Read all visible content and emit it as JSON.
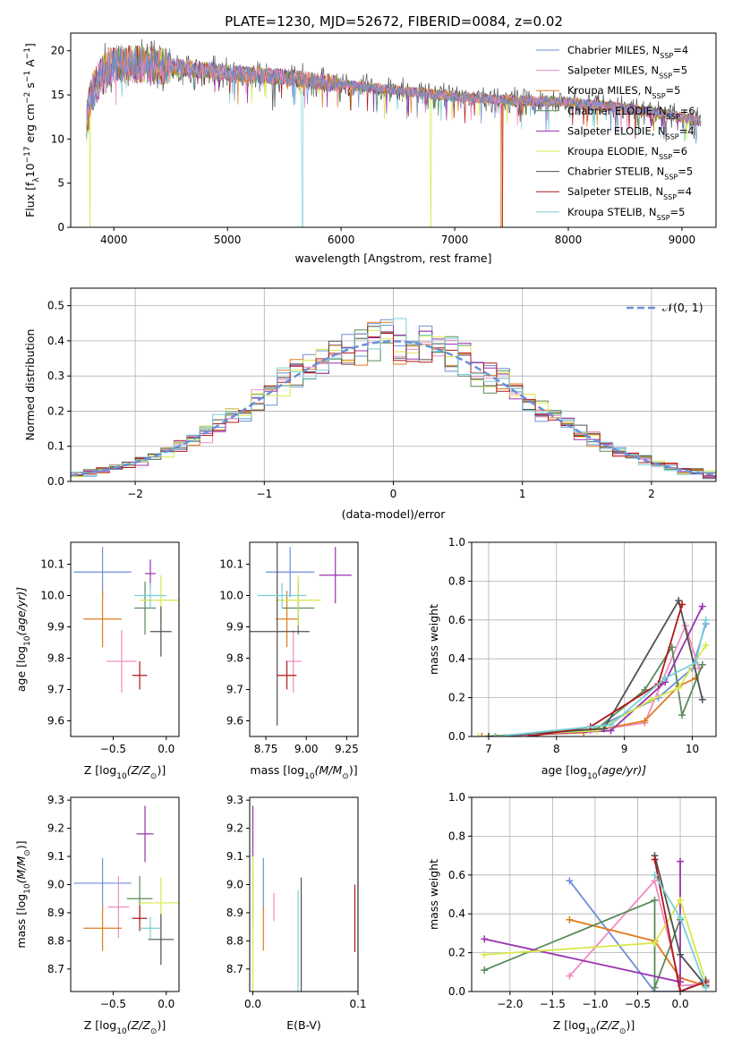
{
  "title": "PLATE=1230, MJD=52672, FIBERID=0084, z=0.02",
  "legend": [
    {
      "label": "Chabrier MILES, N",
      "n": "4",
      "color": "#6b8fd6"
    },
    {
      "label": "Salpeter MILES, N",
      "n": "5",
      "color": "#f08cc0"
    },
    {
      "label": "Kroupa MILES, N",
      "n": "5",
      "color": "#e07b20"
    },
    {
      "label": "Chabrier ELODIE, N",
      "n": "6",
      "color": "#5a8a5a"
    },
    {
      "label": "Salpeter ELODIE, N",
      "n": "4",
      "color": "#9b30b0"
    },
    {
      "label": "Kroupa ELODIE, N",
      "n": "6",
      "color": "#d8e84a"
    },
    {
      "label": "Chabrier STELIB, N",
      "n": "5",
      "color": "#505050"
    },
    {
      "label": "Salpeter STELIB, N",
      "n": "4",
      "color": "#b01818"
    },
    {
      "label": "Kroupa STELIB, N",
      "n": "5",
      "color": "#78d0d8"
    }
  ],
  "legend_sub": "SSP",
  "chart_data": [
    {
      "type": "line",
      "id": "spectrum",
      "xlabel": "wavelength [Angstrom, rest frame]",
      "ylabel": "Flux [f",
      "ylabel_sub": "λ",
      "ylabel_rest": "10",
      "ylabel_exp1": "−17",
      "ylabel_mid": " erg cm",
      "ylabel_exp2": "−2",
      "ylabel_mid2": " s",
      "ylabel_exp3": "−1",
      "ylabel_end": " A",
      "ylabel_exp4": "−1",
      "ylabel_close": "]",
      "xlim": [
        3620,
        9300
      ],
      "ylim": [
        0,
        22
      ],
      "xticks": [
        "4000",
        "5000",
        "6000",
        "7000",
        "8000",
        "9000"
      ],
      "yticks": [
        "0",
        "5",
        "10",
        "15",
        "20"
      ],
      "continuum": [
        [
          3760,
          12
        ],
        [
          3800,
          15
        ],
        [
          3900,
          17.5
        ],
        [
          4000,
          18.5
        ],
        [
          4200,
          18.5
        ],
        [
          4500,
          18.2
        ],
        [
          5000,
          17.5
        ],
        [
          5500,
          17
        ],
        [
          6000,
          16.2
        ],
        [
          6500,
          15.5
        ],
        [
          7000,
          14.8
        ],
        [
          7500,
          14.4
        ],
        [
          8000,
          14.2
        ],
        [
          8500,
          13.5
        ],
        [
          9000,
          12.5
        ],
        [
          9170,
          12
        ]
      ]
    },
    {
      "type": "line",
      "id": "residuals",
      "xlabel": "(data-model)/error",
      "ylabel": "Normed distribution",
      "legend": "𝒩(0, 1)",
      "xlim": [
        -2.5,
        2.5
      ],
      "ylim": [
        0,
        0.55
      ],
      "xticks": [
        "−2",
        "−1",
        "0",
        "1",
        "2"
      ],
      "yticks": [
        "0.0",
        "0.1",
        "0.2",
        "0.3",
        "0.4",
        "0.5"
      ],
      "grid": true
    },
    {
      "type": "scatter",
      "id": "age-vs-Z",
      "xlabel": "Z [log",
      "xlabel_sub": "10",
      "xlabel_rest": "(Z/Z",
      "xlabel_sun": "⊙",
      "xlabel_end": ")]",
      "ylabel": "age  [log",
      "ylabel_sub": "10",
      "ylabel_rest": "(age/yr)]",
      "xlim": [
        -0.9,
        0.12
      ],
      "ylim": [
        9.55,
        10.17
      ],
      "xticks": [
        "−0.5",
        "0.0"
      ],
      "yticks": [
        "9.6",
        "9.7",
        "9.8",
        "9.9",
        "10.0",
        "10.1"
      ],
      "points": [
        {
          "x": -0.6,
          "y": 10.075,
          "dx": 0.27,
          "dy": 0.08,
          "c": "#6b8fd6"
        },
        {
          "x": -0.42,
          "y": 9.79,
          "dx": 0.14,
          "dy": 0.1,
          "c": "#f08cc0"
        },
        {
          "x": -0.6,
          "y": 9.925,
          "dx": 0.18,
          "dy": 0.09,
          "c": "#e07b20"
        },
        {
          "x": -0.2,
          "y": 9.96,
          "dx": 0.1,
          "dy": 0.085,
          "c": "#5a8a5a"
        },
        {
          "x": -0.15,
          "y": 10.07,
          "dx": 0.05,
          "dy": 0.045,
          "c": "#9b30b0"
        },
        {
          "x": -0.05,
          "y": 9.985,
          "dx": 0.2,
          "dy": 0.08,
          "c": "#d8e84a"
        },
        {
          "x": -0.05,
          "y": 9.885,
          "dx": 0.1,
          "dy": 0.08,
          "c": "#505050"
        },
        {
          "x": -0.25,
          "y": 9.745,
          "dx": 0.07,
          "dy": 0.045,
          "c": "#b01818"
        },
        {
          "x": -0.15,
          "y": 10.0,
          "dx": 0.15,
          "dy": 0.04,
          "c": "#78d0d8"
        }
      ]
    },
    {
      "type": "scatter",
      "id": "age-vs-mass",
      "xlabel": "mass [log",
      "xlabel_sub": "10",
      "xlabel_rest": "(M/M",
      "xlabel_sun": "⊙",
      "xlabel_end": ")]",
      "xlim": [
        8.65,
        9.32
      ],
      "ylim": [
        9.55,
        10.17
      ],
      "xticks": [
        "8.75",
        "9.00",
        "9.25"
      ],
      "yticks": [
        "9.6",
        "9.7",
        "9.8",
        "9.9",
        "10.0",
        "10.1"
      ],
      "points": [
        {
          "x": 8.9,
          "y": 10.075,
          "dx": 0.15,
          "dy": 0.08,
          "c": "#6b8fd6"
        },
        {
          "x": 8.92,
          "y": 9.79,
          "dx": 0.05,
          "dy": 0.1,
          "c": "#f08cc0"
        },
        {
          "x": 8.88,
          "y": 9.925,
          "dx": 0.07,
          "dy": 0.09,
          "c": "#e07b20"
        },
        {
          "x": 8.95,
          "y": 9.96,
          "dx": 0.1,
          "dy": 0.085,
          "c": "#5a8a5a"
        },
        {
          "x": 9.18,
          "y": 10.065,
          "dx": 0.1,
          "dy": 0.09,
          "c": "#9b30b0"
        },
        {
          "x": 8.95,
          "y": 9.985,
          "dx": 0.14,
          "dy": 0.08,
          "c": "#d8e84a"
        },
        {
          "x": 8.82,
          "y": 9.885,
          "dx": 0.2,
          "dy": 0.3,
          "c": "#505050"
        },
        {
          "x": 8.88,
          "y": 9.745,
          "dx": 0.06,
          "dy": 0.045,
          "c": "#b01818"
        },
        {
          "x": 8.85,
          "y": 10.0,
          "dx": 0.15,
          "dy": 0.04,
          "c": "#78d0d8"
        }
      ]
    },
    {
      "type": "line",
      "id": "weight-vs-age",
      "xlabel": "age  [log",
      "xlabel_sub": "10",
      "xlabel_rest": "(age/yr)]",
      "ylabel": "mass weight",
      "xlim": [
        6.75,
        10.35
      ],
      "ylim": [
        0,
        1.0
      ],
      "xticks": [
        "7",
        "8",
        "9",
        "10"
      ],
      "yticks": [
        "0.0",
        "0.2",
        "0.4",
        "0.6",
        "0.8",
        "1.0"
      ],
      "grid": true,
      "series": [
        {
          "c": "#6b8fd6",
          "pts": [
            [
              6.9,
              0.0
            ],
            [
              8.5,
              0.03
            ],
            [
              9.5,
              0.2
            ],
            [
              10.0,
              0.35
            ],
            [
              10.2,
              0.58
            ]
          ]
        },
        {
          "c": "#f08cc0",
          "pts": [
            [
              7.0,
              0.0
            ],
            [
              8.5,
              0.03
            ],
            [
              9.3,
              0.07
            ],
            [
              9.9,
              0.57
            ],
            [
              10.1,
              0.35
            ]
          ]
        },
        {
          "c": "#e07b20",
          "pts": [
            [
              6.9,
              0.0
            ],
            [
              8.4,
              0.02
            ],
            [
              9.3,
              0.08
            ],
            [
              9.8,
              0.26
            ],
            [
              10.05,
              0.3
            ]
          ]
        },
        {
          "c": "#5a8a5a",
          "pts": [
            [
              7.1,
              0.0
            ],
            [
              8.6,
              0.04
            ],
            [
              9.3,
              0.24
            ],
            [
              9.7,
              0.46
            ],
            [
              9.85,
              0.11
            ],
            [
              10.15,
              0.37
            ]
          ]
        },
        {
          "c": "#9b30b0",
          "pts": [
            [
              7.0,
              0.0
            ],
            [
              8.8,
              0.03
            ],
            [
              9.6,
              0.28
            ],
            [
              10.15,
              0.67
            ]
          ]
        },
        {
          "c": "#d8e84a",
          "pts": [
            [
              6.85,
              0.0
            ],
            [
              8.6,
              0.03
            ],
            [
              9.4,
              0.19
            ],
            [
              9.8,
              0.25
            ],
            [
              10.2,
              0.47
            ]
          ]
        },
        {
          "c": "#505050",
          "pts": [
            [
              7.0,
              0.0
            ],
            [
              8.7,
              0.04
            ],
            [
              9.8,
              0.7
            ],
            [
              10.15,
              0.19
            ]
          ]
        },
        {
          "c": "#b01818",
          "pts": [
            [
              7.6,
              0.0
            ],
            [
              8.5,
              0.05
            ],
            [
              9.5,
              0.27
            ],
            [
              9.85,
              0.68
            ]
          ]
        },
        {
          "c": "#78d0d8",
          "pts": [
            [
              7.1,
              0.0
            ],
            [
              8.8,
              0.06
            ],
            [
              9.6,
              0.3
            ],
            [
              10.05,
              0.38
            ],
            [
              10.2,
              0.6
            ]
          ]
        }
      ]
    },
    {
      "type": "scatter",
      "id": "mass-vs-Z",
      "xlabel": "Z [log",
      "xlabel_sub": "10",
      "xlabel_rest": "(Z/Z",
      "xlabel_sun": "⊙",
      "xlabel_end": ")]",
      "ylabel": "mass [log",
      "ylabel_sub": "10",
      "ylabel_rest": "(M/M",
      "ylabel_sun": "⊙",
      "ylabel_end": ")]",
      "xlim": [
        -0.9,
        0.12
      ],
      "ylim": [
        8.62,
        9.31
      ],
      "xticks": [
        "−0.5",
        "0.0"
      ],
      "yticks": [
        "8.7",
        "8.8",
        "8.9",
        "9.0",
        "9.1",
        "9.2",
        "9.3"
      ],
      "points": [
        {
          "x": -0.6,
          "y": 9.005,
          "dx": 0.27,
          "dy": 0.09,
          "c": "#6b8fd6"
        },
        {
          "x": -0.45,
          "y": 8.92,
          "dx": 0.1,
          "dy": 0.11,
          "c": "#f08cc0"
        },
        {
          "x": -0.6,
          "y": 8.845,
          "dx": 0.18,
          "dy": 0.08,
          "c": "#e07b20"
        },
        {
          "x": -0.25,
          "y": 8.95,
          "dx": 0.12,
          "dy": 0.08,
          "c": "#5a8a5a"
        },
        {
          "x": -0.2,
          "y": 9.18,
          "dx": 0.08,
          "dy": 0.1,
          "c": "#9b30b0"
        },
        {
          "x": -0.05,
          "y": 8.935,
          "dx": 0.2,
          "dy": 0.09,
          "c": "#d8e84a"
        },
        {
          "x": -0.05,
          "y": 8.805,
          "dx": 0.12,
          "dy": 0.09,
          "c": "#505050"
        },
        {
          "x": -0.25,
          "y": 8.88,
          "dx": 0.07,
          "dy": 0.045,
          "c": "#b01818"
        },
        {
          "x": -0.15,
          "y": 8.845,
          "dx": 0.1,
          "dy": 0.04,
          "c": "#78d0d8"
        }
      ]
    },
    {
      "type": "scatter",
      "id": "mass-vs-ebv",
      "xlabel": "E(B-V)",
      "xlim": [
        -0.003,
        0.1
      ],
      "ylim": [
        8.62,
        9.31
      ],
      "xticks": [
        "0.0",
        "0.1"
      ],
      "yticks": [
        "8.7",
        "8.8",
        "8.9",
        "9.0",
        "9.1",
        "9.2",
        "9.3"
      ],
      "points": [
        {
          "x": 0.01,
          "y": 9.005,
          "dx": 0,
          "dy": 0.09,
          "c": "#6b8fd6"
        },
        {
          "x": 0.02,
          "y": 8.92,
          "dx": 0,
          "dy": 0.05,
          "c": "#f08cc0"
        },
        {
          "x": 0.01,
          "y": 8.845,
          "dx": 0,
          "dy": 0.08,
          "c": "#e07b20"
        },
        {
          "x": 0.0,
          "y": 8.95,
          "dx": 0,
          "dy": 0.1,
          "c": "#5a8a5a"
        },
        {
          "x": 0.0,
          "y": 9.18,
          "dx": 0,
          "dy": 0.1,
          "c": "#9b30b0"
        },
        {
          "x": 0.0,
          "y": 8.8,
          "dx": 0,
          "dy": 0.3,
          "c": "#d8e84a"
        },
        {
          "x": 0.046,
          "y": 8.805,
          "dx": 0,
          "dy": 0.22,
          "c": "#505050"
        },
        {
          "x": 0.097,
          "y": 8.88,
          "dx": 0,
          "dy": 0.12,
          "c": "#b01818"
        },
        {
          "x": 0.043,
          "y": 8.78,
          "dx": 0,
          "dy": 0.2,
          "c": "#78d0d8"
        }
      ]
    },
    {
      "type": "line",
      "id": "weight-vs-Z",
      "xlabel": "Z [log",
      "xlabel_sub": "10",
      "xlabel_rest": "(Z/Z",
      "xlabel_sun": "⊙",
      "xlabel_end": ")]",
      "ylabel": "mass weight",
      "xlim": [
        -2.45,
        0.42
      ],
      "ylim": [
        0,
        1.0
      ],
      "xticks": [
        "−2.0",
        "−1.5",
        "−1.0",
        "−0.5",
        "0.0"
      ],
      "yticks": [
        "0.0",
        "0.2",
        "0.4",
        "0.6",
        "0.8",
        "1.0"
      ],
      "grid": true,
      "series": [
        {
          "c": "#6b8fd6",
          "pts": [
            [
              -1.3,
              0.57
            ],
            [
              -0.3,
              0.0
            ],
            [
              0.0,
              0.0
            ],
            [
              0.3,
              0.06
            ]
          ]
        },
        {
          "c": "#f08cc0",
          "pts": [
            [
              -1.3,
              0.08
            ],
            [
              -0.3,
              0.57
            ],
            [
              0.0,
              0.03
            ],
            [
              0.3,
              0.04
            ]
          ]
        },
        {
          "c": "#e07b20",
          "pts": [
            [
              -1.3,
              0.37
            ],
            [
              -0.3,
              0.26
            ],
            [
              0.0,
              0.07
            ],
            [
              0.3,
              0.03
            ]
          ]
        },
        {
          "c": "#5a8a5a",
          "pts": [
            [
              -2.3,
              0.11
            ],
            [
              -0.3,
              0.47
            ],
            [
              -0.3,
              0.02
            ],
            [
              0.0,
              0.37
            ]
          ]
        },
        {
          "c": "#9b30b0",
          "pts": [
            [
              -2.3,
              0.27
            ],
            [
              0.0,
              0.05
            ],
            [
              0.0,
              0.67
            ]
          ]
        },
        {
          "c": "#d8e84a",
          "pts": [
            [
              -2.3,
              0.19
            ],
            [
              -0.3,
              0.25
            ],
            [
              0.0,
              0.47
            ],
            [
              0.3,
              0.05
            ]
          ]
        },
        {
          "c": "#505050",
          "pts": [
            [
              -0.3,
              0.7
            ],
            [
              0.0,
              0.19
            ],
            [
              0.3,
              0.03
            ]
          ]
        },
        {
          "c": "#b01818",
          "pts": [
            [
              -0.3,
              0.68
            ],
            [
              0.0,
              0.0
            ],
            [
              0.3,
              0.05
            ]
          ]
        },
        {
          "c": "#78d0d8",
          "pts": [
            [
              -0.3,
              0.6
            ],
            [
              0.0,
              0.38
            ],
            [
              0.3,
              0.02
            ]
          ]
        }
      ]
    }
  ]
}
